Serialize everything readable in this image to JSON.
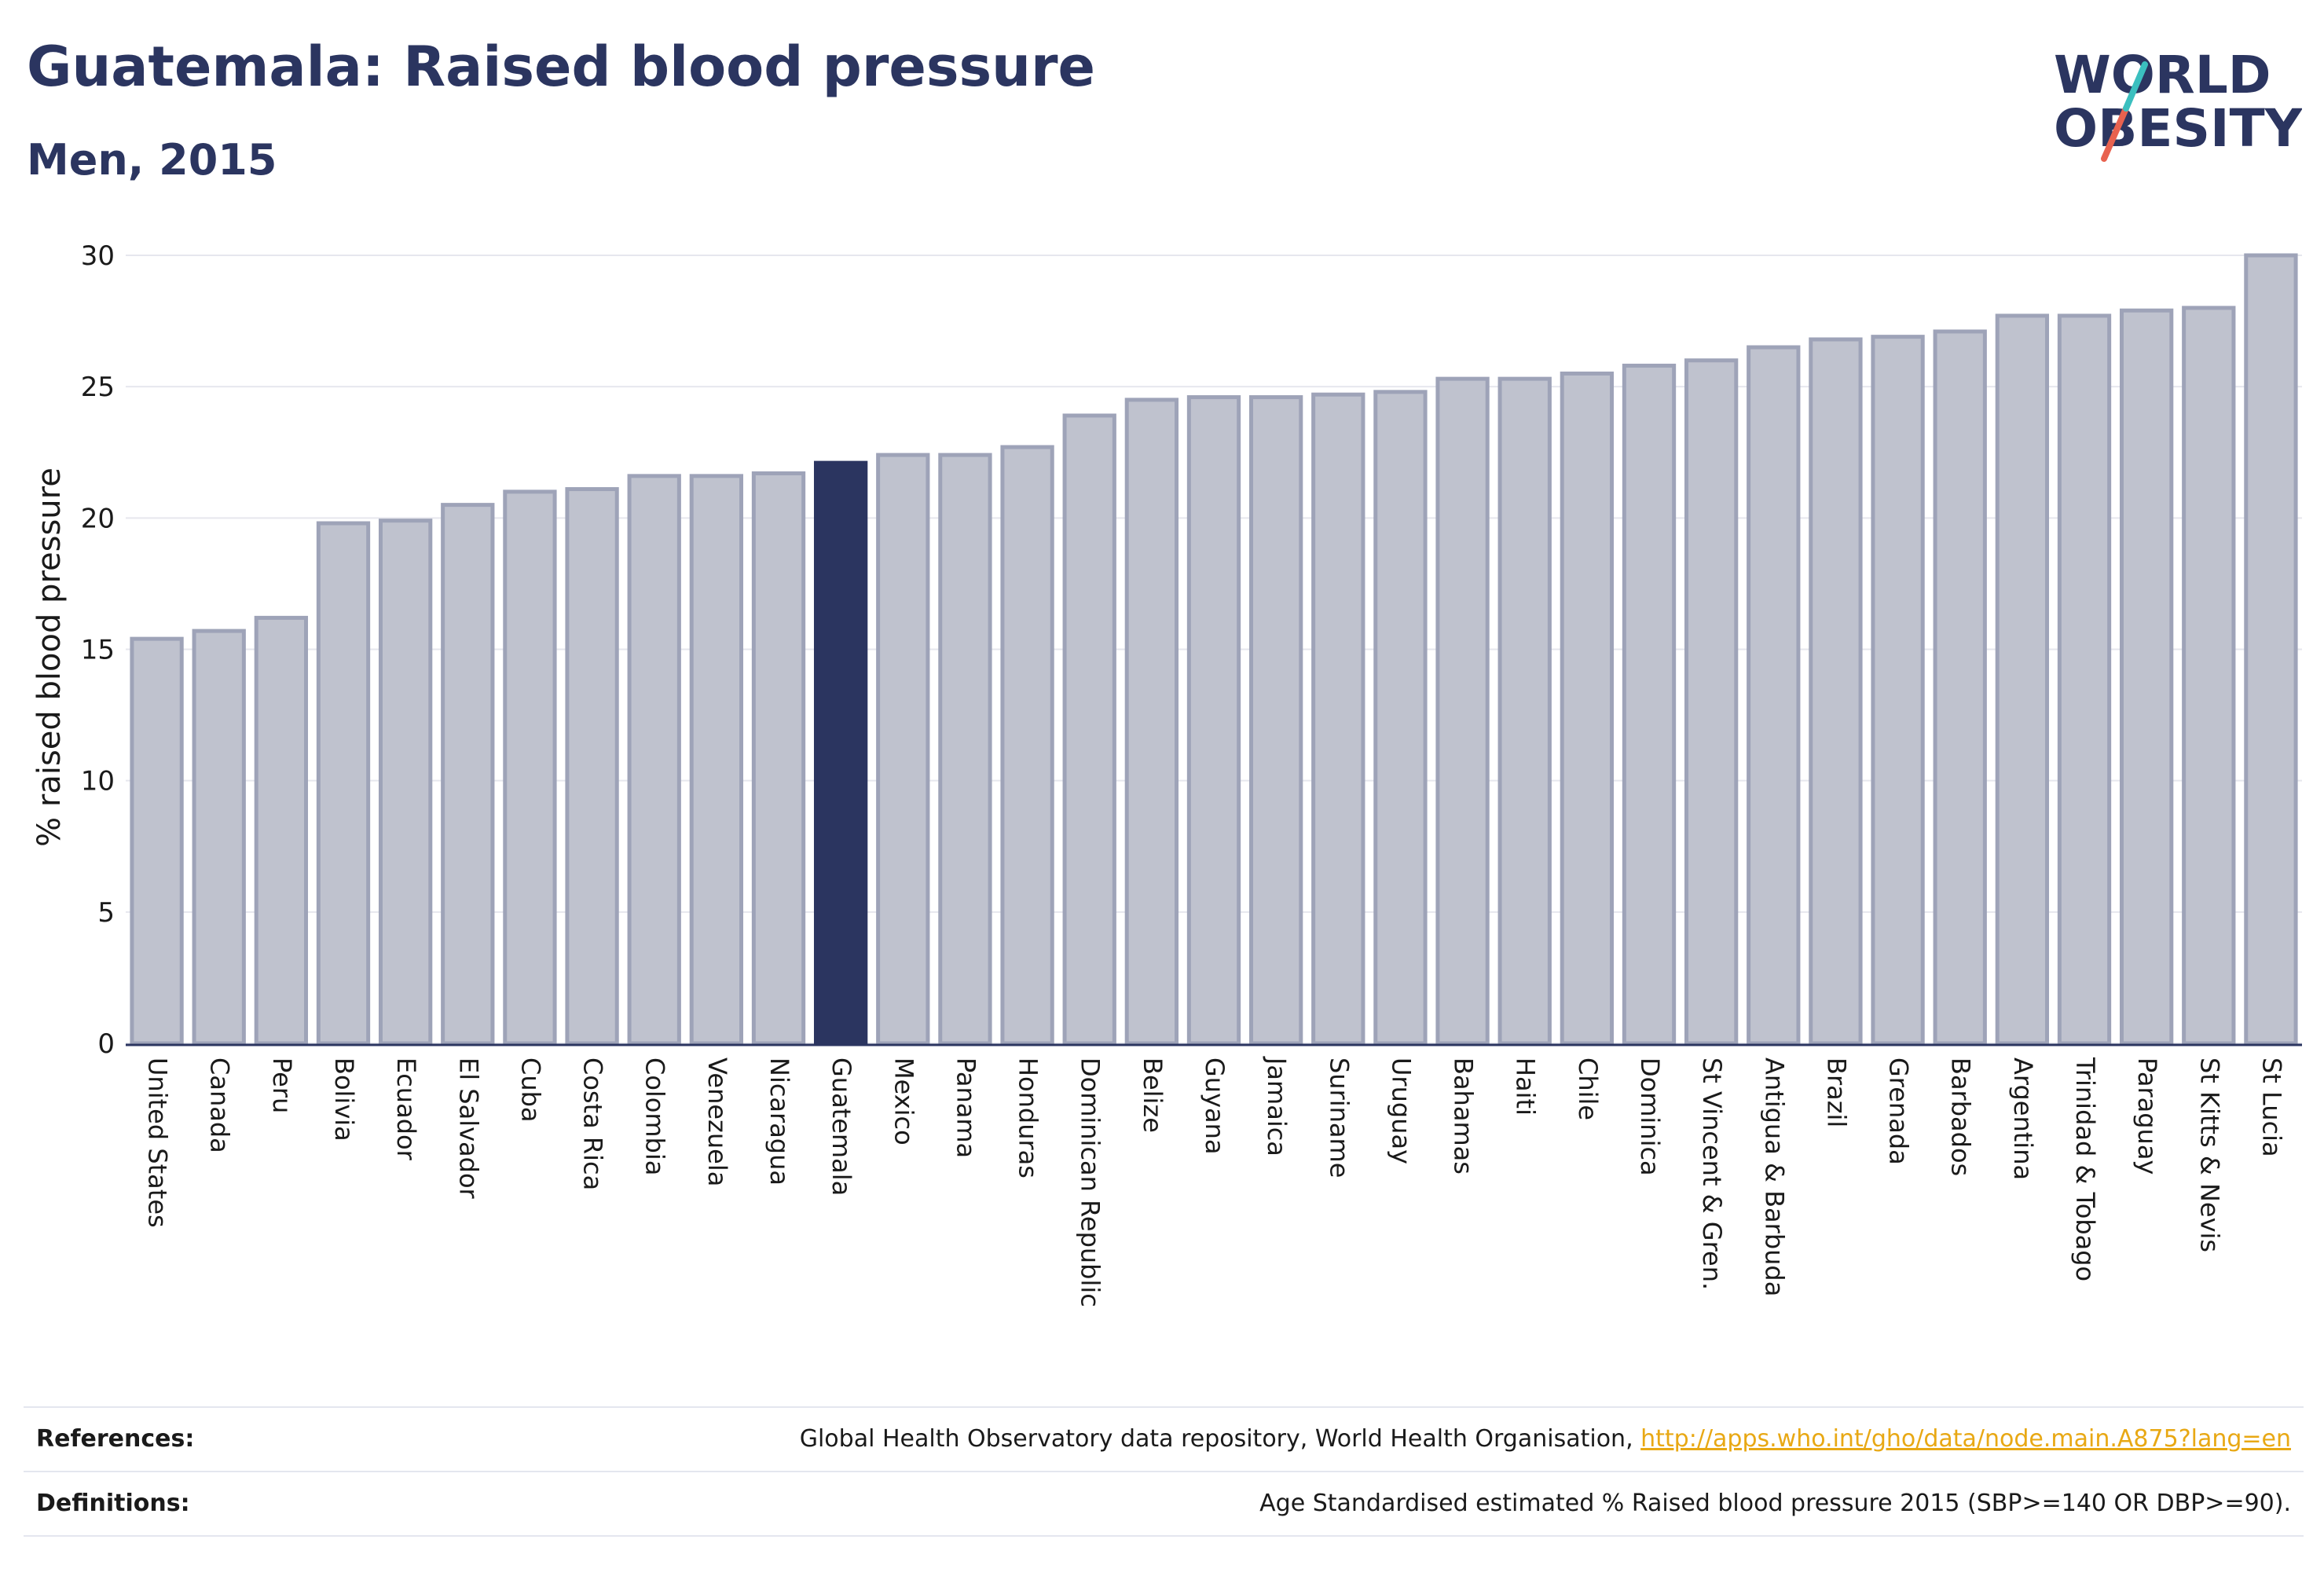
{
  "header": {
    "title": "Guatemala: Raised blood pressure",
    "subtitle": "Men, 2015"
  },
  "logo": {
    "line1": "WORLD",
    "line2": "OBESITY",
    "colors": [
      "#2b3560",
      "#3bbfbf",
      "#e8624f"
    ]
  },
  "chart_data": {
    "type": "bar",
    "title": "",
    "xlabel": "",
    "ylabel": "% raised blood pressure",
    "ylim": [
      0,
      30
    ],
    "yticks": [
      0,
      5,
      10,
      15,
      20,
      25,
      30
    ],
    "grid": true,
    "highlight": "Guatemala",
    "colors": {
      "bar": "#bfc2ce",
      "bar_edge": "#9ea3b8",
      "highlight": "#2b3560"
    },
    "categories": [
      "United States",
      "Canada",
      "Peru",
      "Bolivia",
      "Ecuador",
      "El Salvador",
      "Cuba",
      "Costa Rica",
      "Colombia",
      "Venezuela",
      "Nicaragua",
      "Guatemala",
      "Mexico",
      "Panama",
      "Honduras",
      "Dominican Republic",
      "Belize",
      "Guyana",
      "Jamaica",
      "Suriname",
      "Uruguay",
      "Bahamas",
      "Haiti",
      "Chile",
      "Dominica",
      "St Vincent & Gren.",
      "Antigua & Barbuda",
      "Brazil",
      "Grenada",
      "Barbados",
      "Argentina",
      "Trinidad & Tobago",
      "Paraguay",
      "St Kitts & Nevis",
      "St Lucia"
    ],
    "values": [
      15.4,
      15.7,
      16.2,
      19.8,
      19.9,
      20.5,
      21.0,
      21.1,
      21.6,
      21.6,
      21.7,
      22.1,
      22.4,
      22.4,
      22.7,
      23.9,
      24.5,
      24.6,
      24.6,
      24.7,
      24.8,
      25.3,
      25.3,
      25.5,
      25.8,
      26.0,
      26.5,
      26.8,
      26.9,
      27.1,
      27.7,
      27.7,
      27.9,
      28.0,
      30.0
    ]
  },
  "footer": {
    "references_label": "References:",
    "references_text": "Global Health Observatory data repository, World Health Organisation, ",
    "references_link": "http://apps.who.int/gho/data/node.main.A875?lang=en",
    "definitions_label": "Definitions:",
    "definitions_text": "Age Standardised estimated % Raised blood pressure 2015 (SBP>=140 OR DBP>=90)."
  }
}
